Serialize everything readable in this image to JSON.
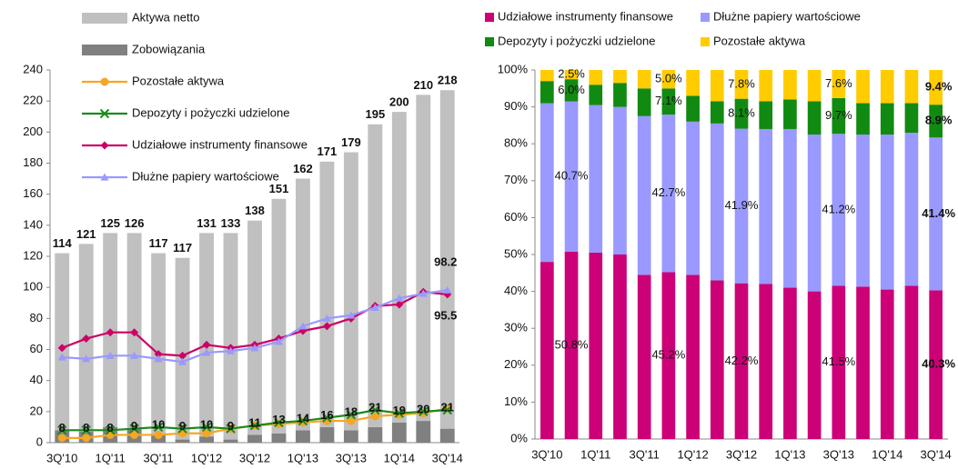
{
  "chart_data": [
    {
      "type": "combo",
      "categories": [
        "3Q'10",
        null,
        "1Q'11",
        null,
        "3Q'11",
        null,
        "1Q'12",
        null,
        "3Q'12",
        null,
        "1Q'13",
        null,
        "3Q'13",
        null,
        "1Q'14",
        null,
        "3Q'14"
      ],
      "ylim": [
        0,
        240
      ],
      "yticks": [
        0,
        20,
        40,
        60,
        80,
        100,
        120,
        140,
        160,
        180,
        200,
        220,
        240
      ],
      "series": [
        {
          "name": "Zobowiązania",
          "type": "bar",
          "color": "#808080",
          "values": [
            8,
            7,
            10,
            9,
            5,
            2,
            4,
            2,
            5,
            6,
            8,
            10,
            8,
            10,
            13,
            14,
            9
          ]
        },
        {
          "name": "Aktywa netto",
          "type": "bar",
          "color": "#c0c0c0",
          "values": [
            114,
            121,
            125,
            126,
            117,
            117,
            131,
            133,
            138,
            151,
            162,
            171,
            179,
            195,
            200,
            210,
            218
          ],
          "value_labels": [
            "114",
            "121",
            "125",
            "126",
            "117",
            "117",
            "131",
            "133",
            "138",
            "151",
            "162",
            "171",
            "179",
            "195",
            "200",
            "210",
            "218"
          ]
        },
        {
          "name": "Pozostałe aktywa",
          "type": "line",
          "marker": "circle",
          "color": "#f5a623",
          "values": [
            3,
            3,
            5,
            5,
            5,
            6,
            6,
            9,
            11,
            12,
            13,
            14,
            14,
            17,
            18,
            19,
            22
          ]
        },
        {
          "name": "Depozyty i pożyczki udzielone",
          "type": "line",
          "marker": "x",
          "color": "#1a8a1a",
          "values": [
            8,
            8,
            8,
            9,
            10,
            9,
            10,
            9,
            11,
            13,
            14,
            16,
            18,
            21,
            19,
            20,
            21
          ],
          "value_labels": [
            "8",
            "8",
            "8",
            "9",
            "10",
            "9",
            "10",
            "9",
            "11",
            "13",
            "14",
            "16",
            "18",
            "21",
            "19",
            "20",
            "21"
          ]
        },
        {
          "name": "Udziałowe instrumenty finansowe",
          "type": "line",
          "marker": "diamond",
          "color": "#cc0066",
          "values": [
            61,
            67,
            71,
            71,
            57,
            56,
            63,
            61,
            63,
            67,
            72,
            75,
            80,
            88,
            89,
            97,
            95.5
          ],
          "value_labels": [
            null,
            null,
            null,
            null,
            null,
            null,
            null,
            null,
            null,
            null,
            null,
            null,
            null,
            null,
            null,
            null,
            "95.5"
          ]
        },
        {
          "name": "Dłużne papiery wartościowe",
          "type": "line",
          "marker": "triangle",
          "color": "#9999ff",
          "values": [
            55,
            54,
            56,
            56,
            54,
            52,
            58,
            59,
            61,
            65,
            75,
            80,
            82,
            87,
            93,
            96,
            98.2
          ],
          "value_labels": [
            null,
            null,
            null,
            null,
            null,
            null,
            null,
            null,
            null,
            null,
            null,
            null,
            null,
            null,
            null,
            null,
            "98.2"
          ]
        }
      ]
    },
    {
      "type": "bar",
      "stacked": true,
      "categories": [
        "3Q'10",
        null,
        "1Q'11",
        null,
        "3Q'11",
        null,
        "1Q'12",
        null,
        "3Q'12",
        null,
        "1Q'13",
        null,
        "3Q'13",
        null,
        "1Q'14",
        null,
        "3Q'14"
      ],
      "ylim": [
        0,
        100
      ],
      "yticks": [
        {
          "value": 0,
          "label": "0%"
        },
        {
          "value": 10,
          "label": "10%"
        },
        {
          "value": 20,
          "label": "20%"
        },
        {
          "value": 30,
          "label": "30%"
        },
        {
          "value": 40,
          "label": "40%"
        },
        {
          "value": 50,
          "label": "50%"
        },
        {
          "value": 60,
          "label": "60%"
        },
        {
          "value": 70,
          "label": "70%"
        },
        {
          "value": 80,
          "label": "80%"
        },
        {
          "value": 90,
          "label": "90%"
        },
        {
          "value": 100,
          "label": "100%"
        }
      ],
      "series": [
        {
          "name": "Udziałowe instrumenty finansowe",
          "color": "#cc0077",
          "values": [
            48,
            50.8,
            50.5,
            50,
            44.5,
            45.2,
            44.5,
            43,
            42.2,
            42,
            41,
            40,
            41.5,
            41.3,
            40.5,
            41.5,
            40.3
          ],
          "value_labels": [
            null,
            "50.8%",
            null,
            null,
            null,
            "45.2%",
            null,
            null,
            "42.2%",
            null,
            null,
            null,
            "41.5%",
            null,
            null,
            null,
            "40.3%"
          ]
        },
        {
          "name": "Dłużne papiery wartościowe",
          "color": "#9999ff",
          "values": [
            43,
            40.7,
            40,
            40,
            43,
            42.7,
            41.5,
            42.5,
            41.9,
            42,
            43,
            42.5,
            41.2,
            41.2,
            42,
            41.5,
            41.4
          ],
          "value_labels": [
            null,
            "40.7%",
            null,
            null,
            null,
            "42.7%",
            null,
            null,
            "41.9%",
            null,
            null,
            null,
            "41.2%",
            null,
            null,
            null,
            "41.4%"
          ]
        },
        {
          "name": "Depozyty i pożyczki udzielone",
          "color": "#118a11",
          "values": [
            6,
            6.0,
            5.5,
            6.5,
            7.5,
            7.1,
            7,
            6,
            8.1,
            7.5,
            8,
            9,
            9.7,
            8.5,
            8.5,
            8,
            8.9
          ],
          "value_labels": [
            null,
            "6.0%",
            null,
            null,
            null,
            "7.1%",
            null,
            null,
            "8.1%",
            null,
            null,
            null,
            "9.7%",
            null,
            null,
            null,
            "8.9%"
          ]
        },
        {
          "name": "Pozostałe aktywa",
          "color": "#ffcc00",
          "values": [
            3,
            2.5,
            4,
            3.5,
            5,
            5.0,
            7,
            8.5,
            7.8,
            8.5,
            8,
            8.5,
            7.6,
            9,
            9,
            9,
            9.4
          ],
          "value_labels": [
            null,
            "2.5%",
            null,
            null,
            null,
            "5.0%",
            null,
            null,
            "7.8%",
            null,
            null,
            null,
            "7.6%",
            null,
            null,
            null,
            "9.4%"
          ]
        }
      ]
    }
  ]
}
